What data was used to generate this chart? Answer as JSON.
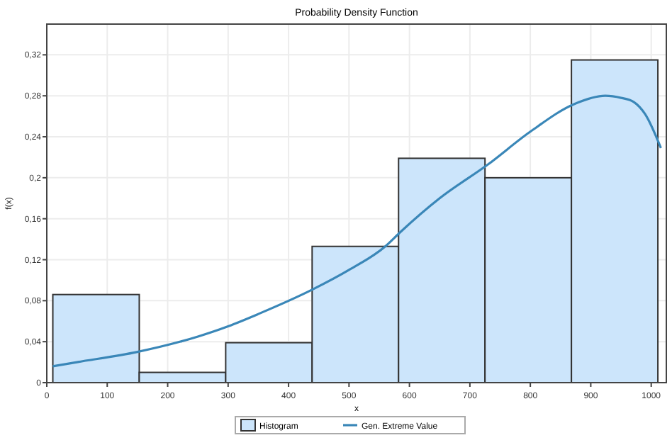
{
  "chart_data": {
    "type": "histogram",
    "title": "Probability Density Function",
    "xlabel": "x",
    "ylabel": "f(x)",
    "bins": [
      10,
      153,
      296,
      439,
      582,
      725,
      868,
      1011
    ],
    "series": [
      {
        "name": "Histogram",
        "color": "#cce5fb",
        "values": [
          0.086,
          0.01,
          0.039,
          0.133,
          0.219,
          0.2,
          0.315
        ]
      },
      {
        "name": "Gen. Extreme Value",
        "type": "line",
        "color": "#3a87b8",
        "x": [
          10,
          50,
          150,
          250,
          300,
          350,
          440,
          500,
          560,
          585,
          650,
          730,
          800,
          873,
          924,
          950,
          971,
          990,
          1016
        ],
        "values": [
          0.016,
          0.02,
          0.03,
          0.045,
          0.055,
          0.067,
          0.091,
          0.11,
          0.133,
          0.147,
          0.18,
          0.213,
          0.245,
          0.272,
          0.28,
          0.278,
          0.274,
          0.262,
          0.229
        ]
      }
    ],
    "xlim": [
      0,
      1025
    ],
    "xticks": [
      0,
      100,
      200,
      300,
      400,
      500,
      600,
      700,
      800,
      900,
      1000
    ],
    "ylim": [
      0,
      0.35
    ],
    "yticks": [
      0,
      {
        "value": 0.04,
        "label": "0,04"
      },
      {
        "value": 0.08,
        "label": "0,08"
      },
      {
        "value": 0.12,
        "label": "0,12"
      },
      {
        "value": 0.16,
        "label": "0,16"
      },
      {
        "value": 0.2,
        "label": "0,2"
      },
      {
        "value": 0.24,
        "label": "0,24"
      },
      {
        "value": 0.28,
        "label": "0,28"
      },
      {
        "value": 0.32,
        "label": "0,32"
      }
    ],
    "grid": true,
    "legend": "bottom"
  }
}
